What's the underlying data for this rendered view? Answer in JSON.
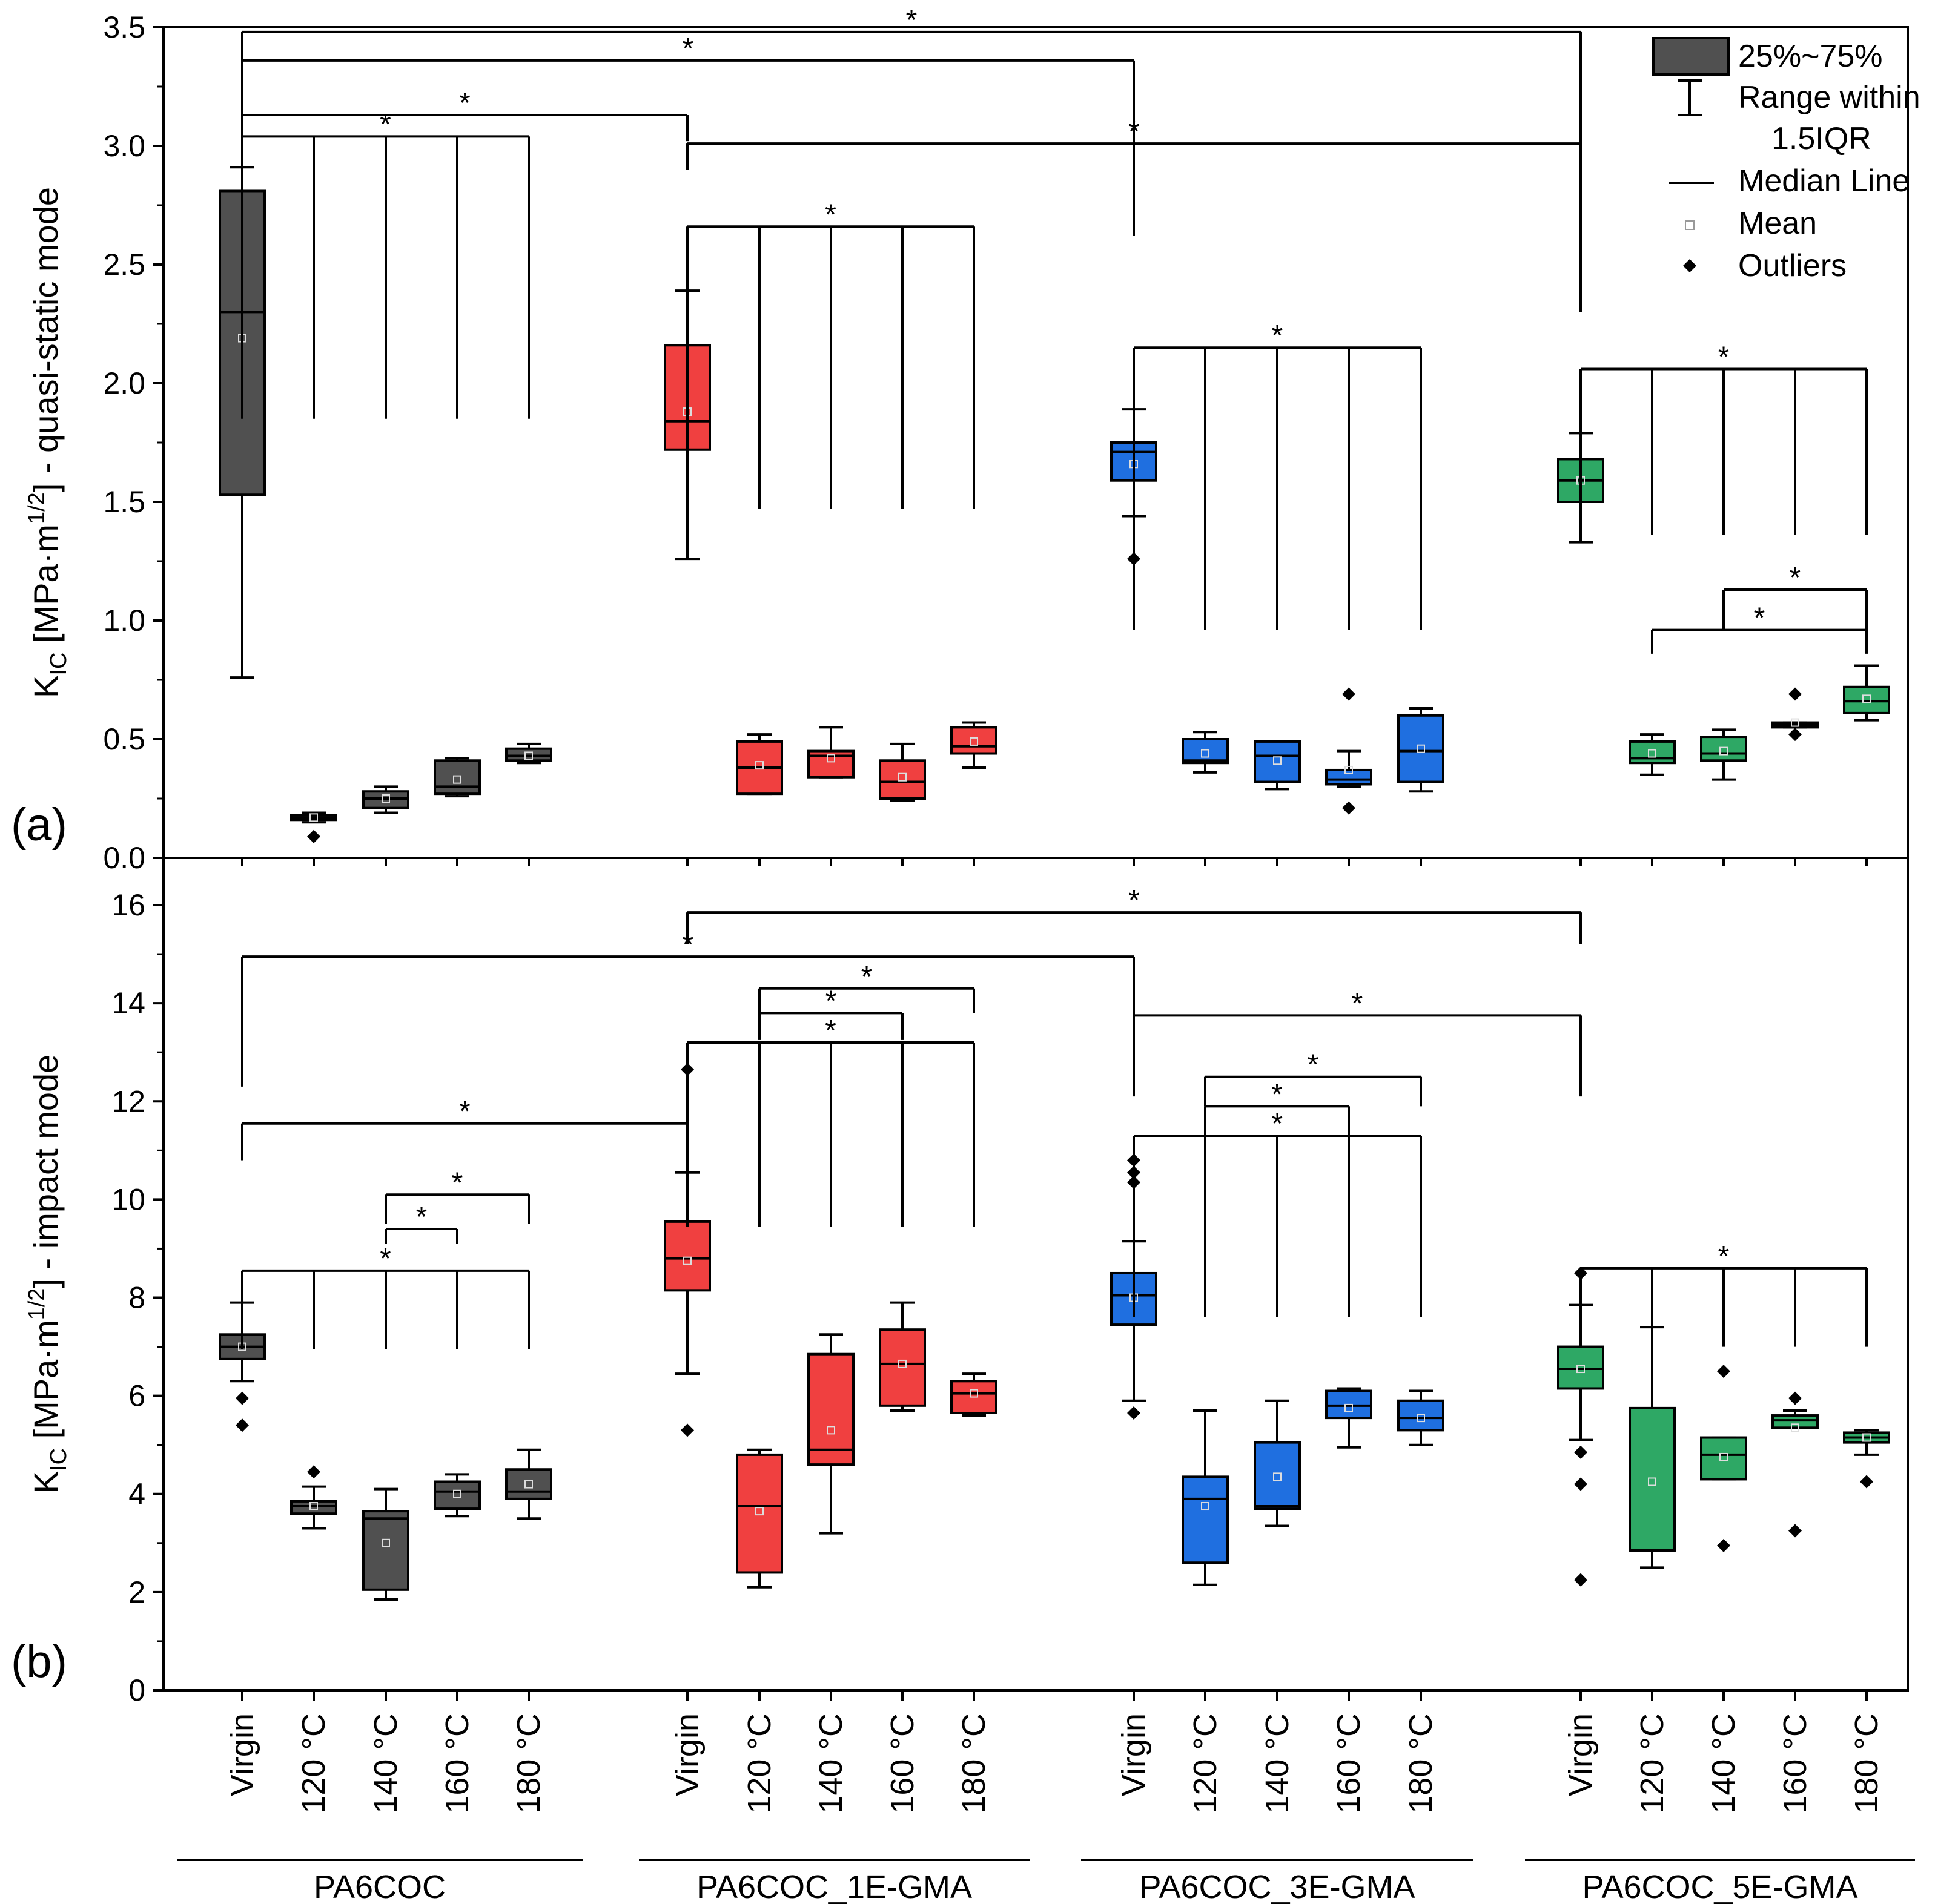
{
  "chart_data": [
    {
      "panel_label": "(a)",
      "type": "box",
      "ylabel_main": "K",
      "ylabel_sub": "IC",
      "ylabel_rest_a": " [MPa·m",
      "ylabel_sup": "1/2",
      "ylabel_rest_b": "] - quasi-static mode",
      "ylim": [
        0,
        3.5
      ],
      "yticks": [
        0.0,
        0.5,
        1.0,
        1.5,
        2.0,
        2.5,
        3.0,
        3.5
      ],
      "ytick_labels": [
        "0.0",
        "0.5",
        "1.0",
        "1.5",
        "2.0",
        "2.5",
        "3.0",
        "3.5"
      ],
      "boxes": [
        {
          "group": "PA6COC",
          "category": "Virgin",
          "whisker_low": 0.76,
          "q1": 1.53,
          "median": 2.3,
          "q3": 2.81,
          "whisker_high": 2.91,
          "mean": 2.19,
          "outliers": []
        },
        {
          "group": "PA6COC",
          "category": "120 °C",
          "whisker_low": 0.15,
          "q1": 0.16,
          "median": 0.17,
          "q3": 0.18,
          "whisker_high": 0.19,
          "mean": 0.17,
          "outliers": [
            0.09
          ]
        },
        {
          "group": "PA6COC",
          "category": "140 °C",
          "whisker_low": 0.19,
          "q1": 0.21,
          "median": 0.25,
          "q3": 0.28,
          "whisker_high": 0.3,
          "mean": 0.25,
          "outliers": []
        },
        {
          "group": "PA6COC",
          "category": "160 °C",
          "whisker_low": 0.26,
          "q1": 0.27,
          "median": 0.3,
          "q3": 0.41,
          "whisker_high": 0.42,
          "mean": 0.33,
          "outliers": []
        },
        {
          "group": "PA6COC",
          "category": "180 °C",
          "whisker_low": 0.4,
          "q1": 0.41,
          "median": 0.43,
          "q3": 0.46,
          "whisker_high": 0.48,
          "mean": 0.43,
          "outliers": []
        },
        {
          "group": "PA6COC_1E-GMA",
          "category": "Virgin",
          "whisker_low": 1.26,
          "q1": 1.72,
          "median": 1.84,
          "q3": 2.16,
          "whisker_high": 2.39,
          "mean": 1.88,
          "outliers": []
        },
        {
          "group": "PA6COC_1E-GMA",
          "category": "120 °C",
          "whisker_low": 0.27,
          "q1": 0.27,
          "median": 0.38,
          "q3": 0.49,
          "whisker_high": 0.52,
          "mean": 0.39,
          "outliers": []
        },
        {
          "group": "PA6COC_1E-GMA",
          "category": "140 °C",
          "whisker_low": 0.34,
          "q1": 0.34,
          "median": 0.43,
          "q3": 0.45,
          "whisker_high": 0.55,
          "mean": 0.42,
          "outliers": []
        },
        {
          "group": "PA6COC_1E-GMA",
          "category": "160 °C",
          "whisker_low": 0.24,
          "q1": 0.25,
          "median": 0.32,
          "q3": 0.41,
          "whisker_high": 0.48,
          "mean": 0.34,
          "outliers": []
        },
        {
          "group": "PA6COC_1E-GMA",
          "category": "180 °C",
          "whisker_low": 0.38,
          "q1": 0.44,
          "median": 0.47,
          "q3": 0.55,
          "whisker_high": 0.57,
          "mean": 0.49,
          "outliers": []
        },
        {
          "group": "PA6COC_3E-GMA",
          "category": "Virgin",
          "whisker_low": 1.44,
          "q1": 1.59,
          "median": 1.71,
          "q3": 1.75,
          "whisker_high": 1.89,
          "mean": 1.66,
          "outliers": [
            1.26
          ]
        },
        {
          "group": "PA6COC_3E-GMA",
          "category": "120 °C",
          "whisker_low": 0.36,
          "q1": 0.4,
          "median": 0.41,
          "q3": 0.5,
          "whisker_high": 0.53,
          "mean": 0.44,
          "outliers": []
        },
        {
          "group": "PA6COC_3E-GMA",
          "category": "140 °C",
          "whisker_low": 0.29,
          "q1": 0.32,
          "median": 0.43,
          "q3": 0.49,
          "whisker_high": 0.49,
          "mean": 0.41,
          "outliers": []
        },
        {
          "group": "PA6COC_3E-GMA",
          "category": "160 °C",
          "whisker_low": 0.3,
          "q1": 0.31,
          "median": 0.33,
          "q3": 0.37,
          "whisker_high": 0.45,
          "mean": 0.37,
          "outliers": [
            0.21,
            0.69
          ]
        },
        {
          "group": "PA6COC_3E-GMA",
          "category": "180 °C",
          "whisker_low": 0.28,
          "q1": 0.32,
          "median": 0.45,
          "q3": 0.6,
          "whisker_high": 0.63,
          "mean": 0.46,
          "outliers": []
        },
        {
          "group": "PA6COC_5E-GMA",
          "category": "Virgin",
          "whisker_low": 1.33,
          "q1": 1.5,
          "median": 1.59,
          "q3": 1.68,
          "whisker_high": 1.79,
          "mean": 1.59,
          "outliers": []
        },
        {
          "group": "PA6COC_5E-GMA",
          "category": "120 °C",
          "whisker_low": 0.35,
          "q1": 0.4,
          "median": 0.42,
          "q3": 0.49,
          "whisker_high": 0.52,
          "mean": 0.44,
          "outliers": []
        },
        {
          "group": "PA6COC_5E-GMA",
          "category": "140 °C",
          "whisker_low": 0.33,
          "q1": 0.41,
          "median": 0.44,
          "q3": 0.51,
          "whisker_high": 0.54,
          "mean": 0.45,
          "outliers": []
        },
        {
          "group": "PA6COC_5E-GMA",
          "category": "160 °C",
          "whisker_low": 0.55,
          "q1": 0.55,
          "median": 0.56,
          "q3": 0.57,
          "whisker_high": 0.57,
          "mean": 0.57,
          "outliers": [
            0.52,
            0.69
          ]
        },
        {
          "group": "PA6COC_5E-GMA",
          "category": "180 °C",
          "whisker_low": 0.58,
          "q1": 0.61,
          "median": 0.66,
          "q3": 0.72,
          "whisker_high": 0.81,
          "mean": 0.67,
          "outliers": []
        }
      ],
      "significance": [
        {
          "from": 0,
          "to": [
            4,
            3,
            2,
            1
          ],
          "y": 3.04,
          "drop_to": 1.85,
          "label": "*"
        },
        {
          "from": 0,
          "to": [
            5
          ],
          "y": 3.13,
          "drop_to": 3.02,
          "label": "*"
        },
        {
          "from": 0,
          "to": [
            10
          ],
          "y": 3.36,
          "drop_to": 2.62,
          "label": "*"
        },
        {
          "from": 0,
          "to": [
            15
          ],
          "y": 3.48,
          "drop_to": 2.3,
          "label": "*"
        },
        {
          "from": 5,
          "to": [
            15
          ],
          "y": 3.01,
          "drop_to": 2.9,
          "label": "*"
        },
        {
          "from": 5,
          "to": [
            6,
            7,
            8,
            9
          ],
          "y": 2.66,
          "drop_to": 1.47,
          "label": "*"
        },
        {
          "from": 10,
          "to": [
            11,
            12,
            13,
            14
          ],
          "y": 2.15,
          "drop_to": 0.96,
          "label": "*"
        },
        {
          "from": 15,
          "to": [
            16,
            17,
            18,
            19
          ],
          "y": 2.06,
          "drop_to": 1.36,
          "label": "*"
        },
        {
          "from": 16,
          "to": [
            19
          ],
          "y": 0.96,
          "drop_to": 0.86,
          "label": "*"
        },
        {
          "from": 17,
          "to": [
            19
          ],
          "y": 1.13,
          "drop_to": 0.96,
          "label": "*"
        }
      ],
      "legend": {
        "placement": "top-right",
        "items": [
          "25%~75%",
          "Range within",
          "1.5IQR",
          "Median Line",
          "Mean",
          "Outliers"
        ]
      }
    },
    {
      "panel_label": "(b)",
      "type": "box",
      "ylabel_main": "K",
      "ylabel_sub": "IC",
      "ylabel_rest_a": " [MPa·m",
      "ylabel_sup": "1/2",
      "ylabel_rest_b": "] - impact mode",
      "ylim": [
        0,
        16
      ],
      "yticks": [
        0,
        2,
        4,
        6,
        8,
        10,
        12,
        14,
        16
      ],
      "ytick_labels": [
        "0",
        "2",
        "4",
        "6",
        "8",
        "10",
        "12",
        "14",
        "16"
      ],
      "boxes": [
        {
          "group": "PA6COC",
          "category": "Virgin",
          "whisker_low": 6.3,
          "q1": 6.75,
          "median": 7.0,
          "q3": 7.25,
          "whisker_high": 7.9,
          "mean": 7.0,
          "outliers": [
            5.95,
            5.4
          ]
        },
        {
          "group": "PA6COC",
          "category": "120 °C",
          "whisker_low": 3.3,
          "q1": 3.6,
          "median": 3.75,
          "q3": 3.85,
          "whisker_high": 4.15,
          "mean": 3.75,
          "outliers": [
            4.45
          ]
        },
        {
          "group": "PA6COC",
          "category": "140 °C",
          "whisker_low": 1.85,
          "q1": 2.05,
          "median": 3.5,
          "q3": 3.65,
          "whisker_high": 4.1,
          "mean": 3.0,
          "outliers": []
        },
        {
          "group": "PA6COC",
          "category": "160 °C",
          "whisker_low": 3.55,
          "q1": 3.7,
          "median": 4.05,
          "q3": 4.25,
          "whisker_high": 4.4,
          "mean": 4.0,
          "outliers": []
        },
        {
          "group": "PA6COC",
          "category": "180 °C",
          "whisker_low": 3.5,
          "q1": 3.9,
          "median": 4.05,
          "q3": 4.5,
          "whisker_high": 4.9,
          "mean": 4.2,
          "outliers": []
        },
        {
          "group": "PA6COC_1E-GMA",
          "category": "Virgin",
          "whisker_low": 6.45,
          "q1": 8.15,
          "median": 8.8,
          "q3": 9.55,
          "whisker_high": 10.55,
          "mean": 8.75,
          "outliers": [
            12.65,
            5.3
          ]
        },
        {
          "group": "PA6COC_1E-GMA",
          "category": "120 °C",
          "whisker_low": 2.1,
          "q1": 2.4,
          "median": 3.75,
          "q3": 4.8,
          "whisker_high": 4.9,
          "mean": 3.65,
          "outliers": []
        },
        {
          "group": "PA6COC_1E-GMA",
          "category": "140 °C",
          "whisker_low": 3.2,
          "q1": 4.6,
          "median": 4.9,
          "q3": 6.85,
          "whisker_high": 7.25,
          "mean": 5.3,
          "outliers": []
        },
        {
          "group": "PA6COC_1E-GMA",
          "category": "160 °C",
          "whisker_low": 5.7,
          "q1": 5.8,
          "median": 6.65,
          "q3": 7.35,
          "whisker_high": 7.9,
          "mean": 6.65,
          "outliers": []
        },
        {
          "group": "PA6COC_1E-GMA",
          "category": "180 °C",
          "whisker_low": 5.6,
          "q1": 5.65,
          "median": 6.05,
          "q3": 6.3,
          "whisker_high": 6.45,
          "mean": 6.05,
          "outliers": []
        },
        {
          "group": "PA6COC_3E-GMA",
          "category": "Virgin",
          "whisker_low": 5.9,
          "q1": 7.45,
          "median": 8.05,
          "q3": 8.5,
          "whisker_high": 9.15,
          "mean": 8.0,
          "outliers": [
            10.8,
            10.55,
            10.35,
            5.65
          ]
        },
        {
          "group": "PA6COC_3E-GMA",
          "category": "120 °C",
          "whisker_low": 2.15,
          "q1": 2.6,
          "median": 3.9,
          "q3": 4.35,
          "whisker_high": 5.7,
          "mean": 3.75,
          "outliers": []
        },
        {
          "group": "PA6COC_3E-GMA",
          "category": "140 °C",
          "whisker_low": 3.35,
          "q1": 3.7,
          "median": 3.75,
          "q3": 5.05,
          "whisker_high": 5.9,
          "mean": 4.35,
          "outliers": []
        },
        {
          "group": "PA6COC_3E-GMA",
          "category": "160 °C",
          "whisker_low": 4.95,
          "q1": 5.55,
          "median": 5.8,
          "q3": 6.1,
          "whisker_high": 6.15,
          "mean": 5.75,
          "outliers": []
        },
        {
          "group": "PA6COC_3E-GMA",
          "category": "180 °C",
          "whisker_low": 5.0,
          "q1": 5.3,
          "median": 5.55,
          "q3": 5.9,
          "whisker_high": 6.1,
          "mean": 5.55,
          "outliers": []
        },
        {
          "group": "PA6COC_5E-GMA",
          "category": "Virgin",
          "whisker_low": 5.1,
          "q1": 6.15,
          "median": 6.55,
          "q3": 7.0,
          "whisker_high": 7.85,
          "mean": 6.55,
          "outliers": [
            8.5,
            4.85,
            4.2,
            2.25
          ]
        },
        {
          "group": "PA6COC_5E-GMA",
          "category": "120 °C",
          "whisker_low": 2.5,
          "q1": 2.85,
          "median": 2.85,
          "q3": 5.75,
          "whisker_high": 7.4,
          "mean": 4.25,
          "outliers": []
        },
        {
          "group": "PA6COC_5E-GMA",
          "category": "140 °C",
          "whisker_low": 4.3,
          "q1": 4.3,
          "median": 4.8,
          "q3": 5.15,
          "whisker_high": 5.15,
          "mean": 4.75,
          "outliers": [
            6.5,
            2.95
          ]
        },
        {
          "group": "PA6COC_5E-GMA",
          "category": "160 °C",
          "whisker_low": 5.35,
          "q1": 5.35,
          "median": 5.5,
          "q3": 5.6,
          "whisker_high": 5.7,
          "mean": 5.35,
          "outliers": [
            5.95,
            3.25
          ]
        },
        {
          "group": "PA6COC_5E-GMA",
          "category": "180 °C",
          "whisker_low": 4.8,
          "q1": 5.05,
          "median": 5.15,
          "q3": 5.25,
          "whisker_high": 5.3,
          "mean": 5.15,
          "outliers": [
            4.25
          ]
        }
      ],
      "significance": [
        {
          "from": 0,
          "to": [
            4,
            3,
            2,
            1
          ],
          "y": 8.55,
          "drop_to": 6.95,
          "label": "*"
        },
        {
          "from": 2,
          "to": [
            3
          ],
          "y": 9.4,
          "drop_to": 9.1,
          "label": "*"
        },
        {
          "from": 2,
          "to": [
            4
          ],
          "y": 10.1,
          "drop_to": 9.5,
          "label": "*"
        },
        {
          "from": 0,
          "to": [
            5
          ],
          "y": 11.55,
          "drop_to": 10.8,
          "label": "*"
        },
        {
          "from": 0,
          "to": [
            10
          ],
          "y": 14.95,
          "drop_to": 12.3,
          "label": "*"
        },
        {
          "from": 5,
          "to": [
            15
          ],
          "y": 15.85,
          "drop_to": 15.2,
          "label": "*"
        },
        {
          "from": 10,
          "to": [
            15
          ],
          "y": 13.75,
          "drop_to": 12.1,
          "label": "*"
        },
        {
          "from": 5,
          "to": [
            6,
            7,
            8,
            9
          ],
          "y": 13.2,
          "drop_to": 9.45,
          "label": "*"
        },
        {
          "from": 6,
          "to": [
            8
          ],
          "y": 13.8,
          "drop_to": 13.25,
          "label": "*"
        },
        {
          "from": 6,
          "to": [
            9
          ],
          "y": 14.3,
          "drop_to": 13.8,
          "label": "*"
        },
        {
          "from": 10,
          "to": [
            11,
            12,
            13,
            14
          ],
          "y": 11.3,
          "drop_to": 7.6,
          "label": "*"
        },
        {
          "from": 11,
          "to": [
            13
          ],
          "y": 11.9,
          "drop_to": 11.3,
          "label": "*"
        },
        {
          "from": 11,
          "to": [
            14
          ],
          "y": 12.5,
          "drop_to": 11.9,
          "label": "*"
        },
        {
          "from": 15,
          "to": [
            16,
            17,
            18,
            19
          ],
          "y": 8.6,
          "drop_to": 7.0,
          "label": "*"
        }
      ]
    }
  ],
  "categories": [
    "Virgin",
    "120 °C",
    "140 °C",
    "160 °C",
    "180 °C"
  ],
  "groups": [
    {
      "name": "PA6COC",
      "color": "#505050"
    },
    {
      "name": "PA6COC_1E-GMA",
      "color": "#f04040"
    },
    {
      "name": "PA6COC_3E-GMA",
      "color": "#1f6fe0"
    },
    {
      "name": "PA6COC_5E-GMA",
      "color": "#2ea865"
    }
  ]
}
